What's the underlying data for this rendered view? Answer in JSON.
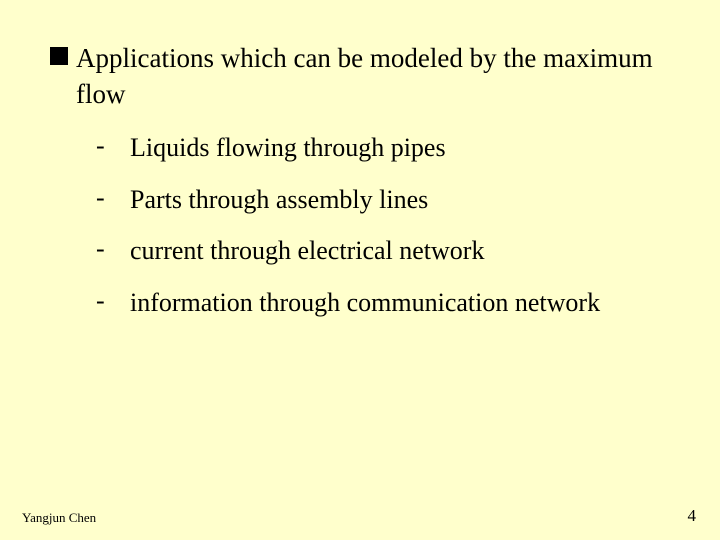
{
  "slide": {
    "background_color": "#ffffcc",
    "text_color": "#000000",
    "font_family": "Times New Roman",
    "main_bullet": {
      "marker_shape": "filled-square",
      "marker_color": "#000000",
      "text": "Applications which can be modeled by the maximum flow",
      "fontsize": 27
    },
    "sub_items": [
      {
        "marker": "-",
        "text": "Liquids flowing through pipes"
      },
      {
        "marker": "-",
        "text": "Parts through assembly lines"
      },
      {
        "marker": "-",
        "text": "current through electrical network"
      },
      {
        "marker": "-",
        "text": "information through communication network"
      }
    ],
    "sub_fontsize": 26,
    "footer": {
      "author": "Yangjun Chen",
      "page_number": "4",
      "author_fontsize": 13,
      "page_fontsize": 17
    }
  }
}
